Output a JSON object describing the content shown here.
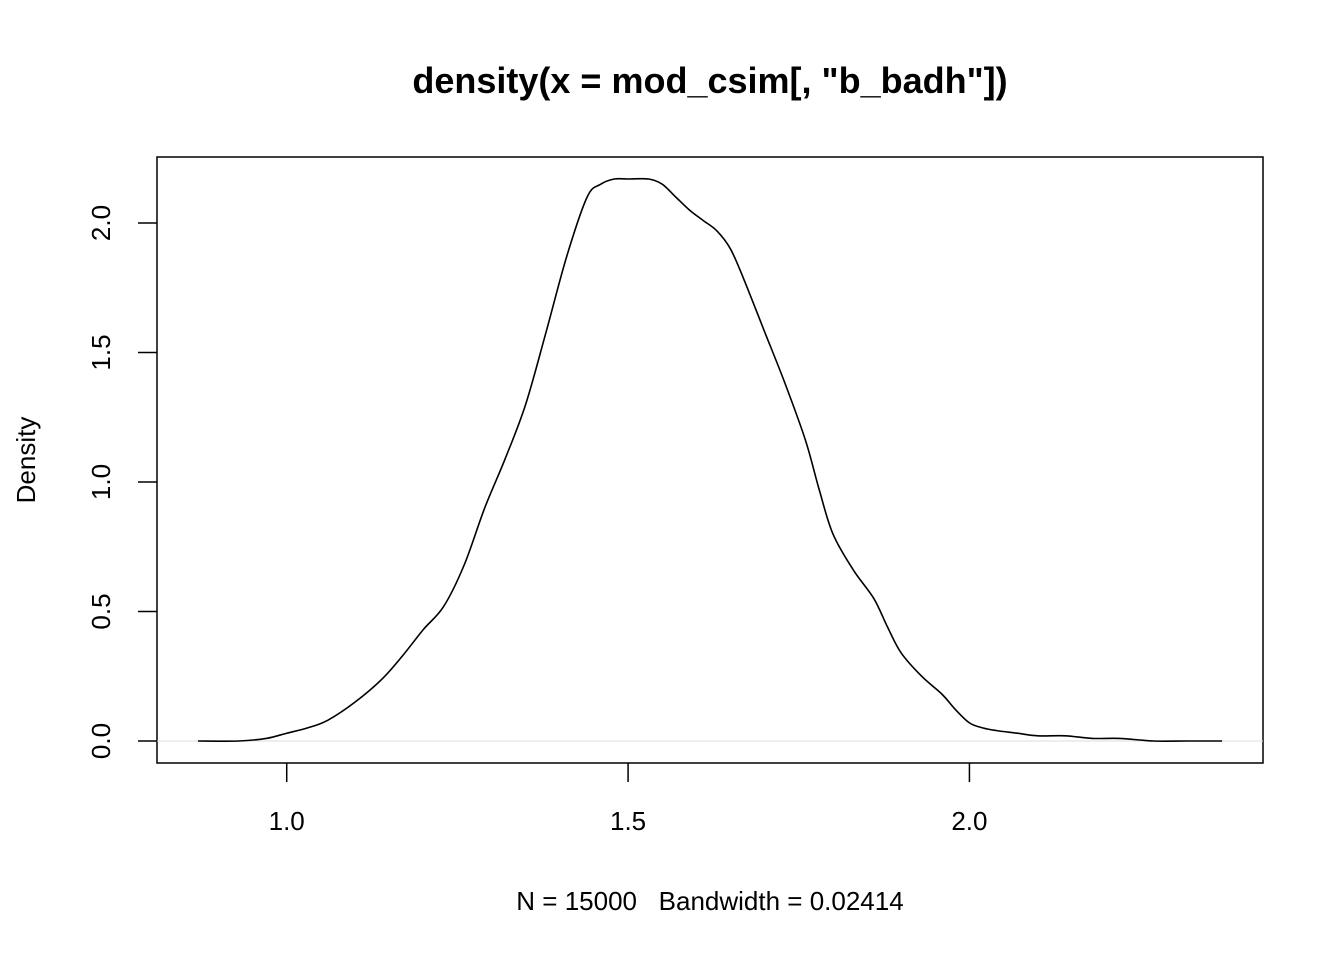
{
  "chart_data": {
    "type": "line",
    "title": "density(x = mod_csim[, \"b_badh\"])",
    "xlabel": "N = 15000   Bandwidth = 0.02414",
    "ylabel": "Density",
    "xlim": [
      0.81,
      2.43
    ],
    "ylim": [
      -0.085,
      2.255
    ],
    "x_ticks": [
      1.0,
      1.5,
      2.0
    ],
    "x_tick_labels": [
      "1.0",
      "1.5",
      "2.0"
    ],
    "y_ticks": [
      0.0,
      0.5,
      1.0,
      1.5,
      2.0
    ],
    "y_tick_labels": [
      "0.0",
      "0.5",
      "1.0",
      "1.5",
      "2.0"
    ],
    "grid": false,
    "zero_line": true,
    "series": [
      {
        "x": [
          0.87,
          0.93,
          0.97,
          1.0,
          1.03,
          1.06,
          1.1,
          1.14,
          1.17,
          1.2,
          1.23,
          1.26,
          1.29,
          1.32,
          1.35,
          1.38,
          1.41,
          1.44,
          1.46,
          1.48,
          1.5,
          1.53,
          1.55,
          1.57,
          1.59,
          1.61,
          1.63,
          1.65,
          1.67,
          1.7,
          1.73,
          1.76,
          1.78,
          1.8,
          1.83,
          1.86,
          1.88,
          1.9,
          1.93,
          1.96,
          1.98,
          2.0,
          2.02,
          2.04,
          2.07,
          2.1,
          2.14,
          2.18,
          2.22,
          2.27,
          2.32,
          2.37
        ],
        "y": [
          0.0,
          0.0,
          0.01,
          0.03,
          0.05,
          0.08,
          0.15,
          0.24,
          0.33,
          0.43,
          0.52,
          0.68,
          0.9,
          1.09,
          1.3,
          1.58,
          1.87,
          2.1,
          2.15,
          2.17,
          2.17,
          2.17,
          2.15,
          2.1,
          2.05,
          2.01,
          1.97,
          1.9,
          1.78,
          1.58,
          1.38,
          1.16,
          0.97,
          0.8,
          0.66,
          0.55,
          0.44,
          0.34,
          0.25,
          0.18,
          0.12,
          0.07,
          0.05,
          0.04,
          0.03,
          0.02,
          0.02,
          0.01,
          0.01,
          0.0,
          0.0,
          0.0
        ]
      }
    ]
  }
}
